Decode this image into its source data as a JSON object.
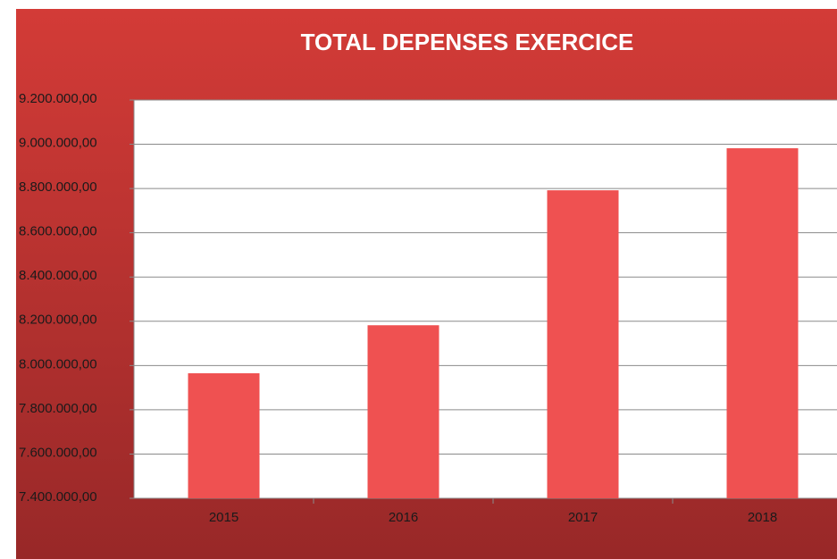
{
  "chart_data": {
    "type": "bar",
    "title": "TOTAL DEPENSES EXERCICE",
    "categories": [
      "2015",
      "2016",
      "2017",
      "2018"
    ],
    "values": [
      7965000,
      8182000,
      8792000,
      8982000
    ],
    "color": "#ef5151",
    "ylim": [
      7400000,
      9200000
    ],
    "yticks": [
      {
        "value": 7400000,
        "label": "7.400.000,00"
      },
      {
        "value": 7600000,
        "label": "7.600.000,00"
      },
      {
        "value": 7800000,
        "label": "7.800.000,00"
      },
      {
        "value": 8000000,
        "label": "8.000.000,00"
      },
      {
        "value": 8200000,
        "label": "8.200.000,00"
      },
      {
        "value": 8400000,
        "label": "8.400.000,00"
      },
      {
        "value": 8600000,
        "label": "8.600.000,00"
      },
      {
        "value": 8800000,
        "label": "8.800.000,00"
      },
      {
        "value": 9000000,
        "label": "9.000.000,00"
      },
      {
        "value": 9200000,
        "label": "9.200.000,00"
      }
    ],
    "grid": true
  }
}
